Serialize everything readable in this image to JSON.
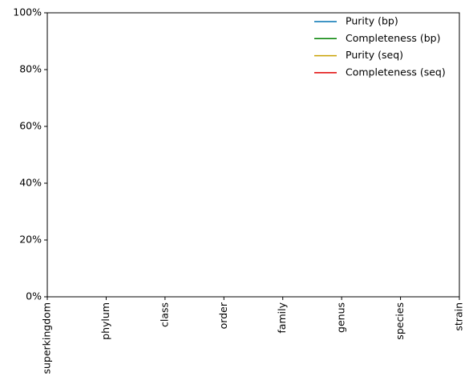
{
  "chart_data": {
    "type": "line",
    "categories": [
      "superkingdom",
      "phylum",
      "class",
      "order",
      "family",
      "genus",
      "species",
      "strain"
    ],
    "series": [
      {
        "name": "Purity (bp)",
        "color": "#0072b2",
        "values": [
          null,
          null,
          null,
          null,
          null,
          null,
          null,
          null
        ]
      },
      {
        "name": "Completeness (bp)",
        "color": "#008000",
        "values": [
          null,
          null,
          null,
          null,
          null,
          null,
          null,
          null
        ]
      },
      {
        "name": "Purity (seq)",
        "color": "#c8a000",
        "values": [
          null,
          null,
          null,
          null,
          null,
          null,
          null,
          null
        ]
      },
      {
        "name": "Completeness (seq)",
        "color": "#e00000",
        "values": [
          null,
          null,
          null,
          null,
          null,
          null,
          null,
          null
        ]
      }
    ],
    "ylim": [
      0,
      100
    ],
    "yticks": [
      {
        "value": 0,
        "label": "0%"
      },
      {
        "value": 20,
        "label": "20%"
      },
      {
        "value": 40,
        "label": "40%"
      },
      {
        "value": 60,
        "label": "60%"
      },
      {
        "value": 80,
        "label": "80%"
      },
      {
        "value": 100,
        "label": "100%"
      }
    ],
    "legend": "upper right"
  }
}
